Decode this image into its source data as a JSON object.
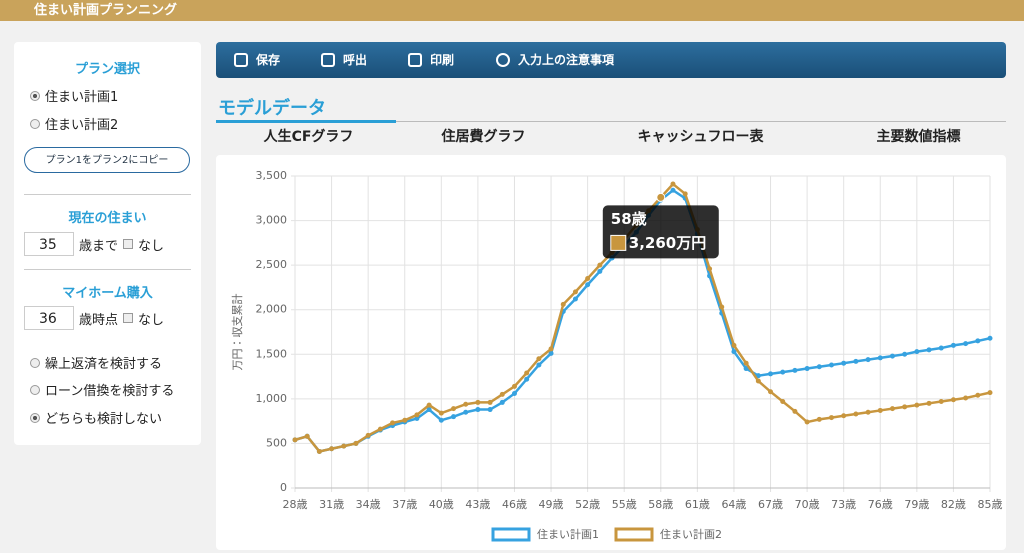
{
  "header": {
    "title": "住まい計画プランニング"
  },
  "sidebar": {
    "plan_title": "プラン選択",
    "plans": [
      "住まい計画1",
      "住まい計画2"
    ],
    "copy_button": "プラン1をプラン2にコピー",
    "current_title": "現在の住まい",
    "current_age": "35",
    "current_suffix": "歳まで",
    "current_none": "なし",
    "purchase_title": "マイホーム購入",
    "purchase_age": "36",
    "purchase_suffix": "歳時点",
    "purchase_none": "なし",
    "options": [
      "繰上返済を検討する",
      "ローン借換を検討する",
      "どちらも検討しない"
    ]
  },
  "toolbar": {
    "items": [
      "保存",
      "呼出",
      "印刷",
      "入力上の注意事項"
    ]
  },
  "section_title": "モデルデータ",
  "tabs": [
    "人生CFグラフ",
    "住居費グラフ",
    "キャッシュフロー表",
    "主要数値指標"
  ],
  "chart_data": {
    "type": "line",
    "y_label": "万円：収支累計",
    "categories": [
      "28歳",
      null,
      null,
      "31歳",
      null,
      null,
      "34歳",
      null,
      null,
      "37歳",
      null,
      null,
      "40歳",
      null,
      null,
      "43歳",
      null,
      null,
      "46歳",
      null,
      null,
      "49歳",
      null,
      null,
      "52歳",
      null,
      null,
      "55歳",
      null,
      null,
      "58歳",
      null,
      null,
      "61歳",
      null,
      null,
      "64歳",
      null,
      null,
      "67歳",
      null,
      null,
      "70歳",
      null,
      null,
      "73歳",
      null,
      null,
      "76歳",
      null,
      null,
      "79歳",
      null,
      null,
      "82歳",
      null,
      null,
      "85歳"
    ],
    "ylim": [
      0,
      3500
    ],
    "yticks": [
      0,
      500,
      {
        "value": 1000,
        "label": "1,000"
      },
      {
        "value": 1500,
        "label": "1,500"
      },
      {
        "value": 2000,
        "label": "2,000"
      },
      {
        "value": 2500,
        "label": "2,500"
      },
      {
        "value": 3000,
        "label": "3,000"
      },
      {
        "value": 3500,
        "label": "3,500"
      }
    ],
    "grid": true,
    "legend": "bottom",
    "series": [
      {
        "name": "住まい計画1",
        "color": "#36a2e0",
        "values": [
          540,
          580,
          410,
          440,
          470,
          500,
          580,
          650,
          700,
          740,
          780,
          880,
          760,
          800,
          850,
          880,
          880,
          960,
          1060,
          1220,
          1380,
          1510,
          1980,
          2120,
          2280,
          2430,
          2580,
          2720,
          2870,
          3060,
          3230,
          3340,
          3250,
          2850,
          2380,
          1960,
          1530,
          1340,
          1260,
          1280,
          1300,
          1320,
          1340,
          1360,
          1380,
          1400,
          1420,
          1440,
          1460,
          1480,
          1500,
          1530,
          1550,
          1570,
          1600,
          1620,
          1650,
          1680
        ]
      },
      {
        "name": "住まい計画2",
        "color": "#c8963e",
        "values": [
          540,
          580,
          410,
          440,
          470,
          500,
          590,
          660,
          730,
          760,
          820,
          930,
          840,
          890,
          940,
          960,
          960,
          1050,
          1140,
          1290,
          1450,
          1560,
          2060,
          2200,
          2350,
          2500,
          2640,
          2790,
          2950,
          3110,
          3260,
          3410,
          3300,
          2900,
          2460,
          2030,
          1600,
          1400,
          1200,
          1080,
          970,
          860,
          740,
          770,
          790,
          810,
          830,
          850,
          870,
          890,
          910,
          930,
          950,
          970,
          990,
          1010,
          1040,
          1070
        ]
      }
    ],
    "tooltip": {
      "title": "58歳",
      "value": 3260,
      "value_label": "3,260万円"
    }
  }
}
